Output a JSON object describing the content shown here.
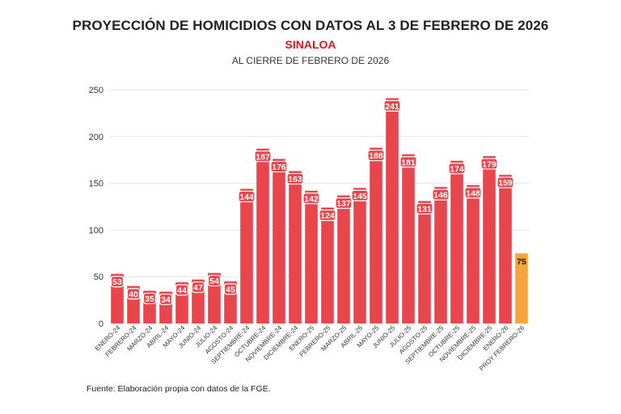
{
  "header": {
    "title": "PROYECCIÓN DE HOMICIDIOS CON DATOS AL 3 DE FEBRERO DE 2026",
    "subtitle": "SINALOA",
    "subtitle2": "AL CIERRE DE FEBRERO DE 2026"
  },
  "footer": {
    "source": "Fuente: Elaboración propia con datos de la FGE."
  },
  "colors": {
    "bar": "#e8454c",
    "projection_bar": "#f6a53a",
    "subtitle": "#e0141e",
    "grid": "#e6e6e6",
    "label_bg": "#e8454c",
    "projection_label_bg": "#f6a53a"
  },
  "chart_data": {
    "type": "bar",
    "categories": [
      "ENERO-24",
      "FEBRERO-24",
      "MARZO-24",
      "ABRIL-24",
      "MAYO-24",
      "JUNIO-24",
      "JULIO-24",
      "AGOSTO-24",
      "SEPTIEMBRE-24",
      "OCTUBRE-24",
      "NOVIEMBRE-24",
      "DICIEMBRE-24",
      "ENERO-25",
      "FEBRERO-25",
      "MARZO-25",
      "ABRIL-25",
      "MAYO-25",
      "JUNIO-25",
      "JULIO-25",
      "AGOSTO-25",
      "SEPTIEMBRE-25",
      "OCTUBRE-25",
      "NOVIEMBRE-25",
      "DICIEMBRE-25",
      "ENERO-26",
      "PROY FEBRERO-26"
    ],
    "values": [
      53,
      40,
      35,
      34,
      44,
      47,
      54,
      45,
      144,
      187,
      176,
      163,
      142,
      124,
      137,
      145,
      188,
      241,
      181,
      131,
      146,
      174,
      148,
      179,
      159,
      75
    ],
    "highlight_last": true,
    "ylim": [
      0,
      250
    ],
    "yticks": [
      0,
      50,
      100,
      150,
      200,
      250
    ],
    "grid": true,
    "legend": "none"
  }
}
